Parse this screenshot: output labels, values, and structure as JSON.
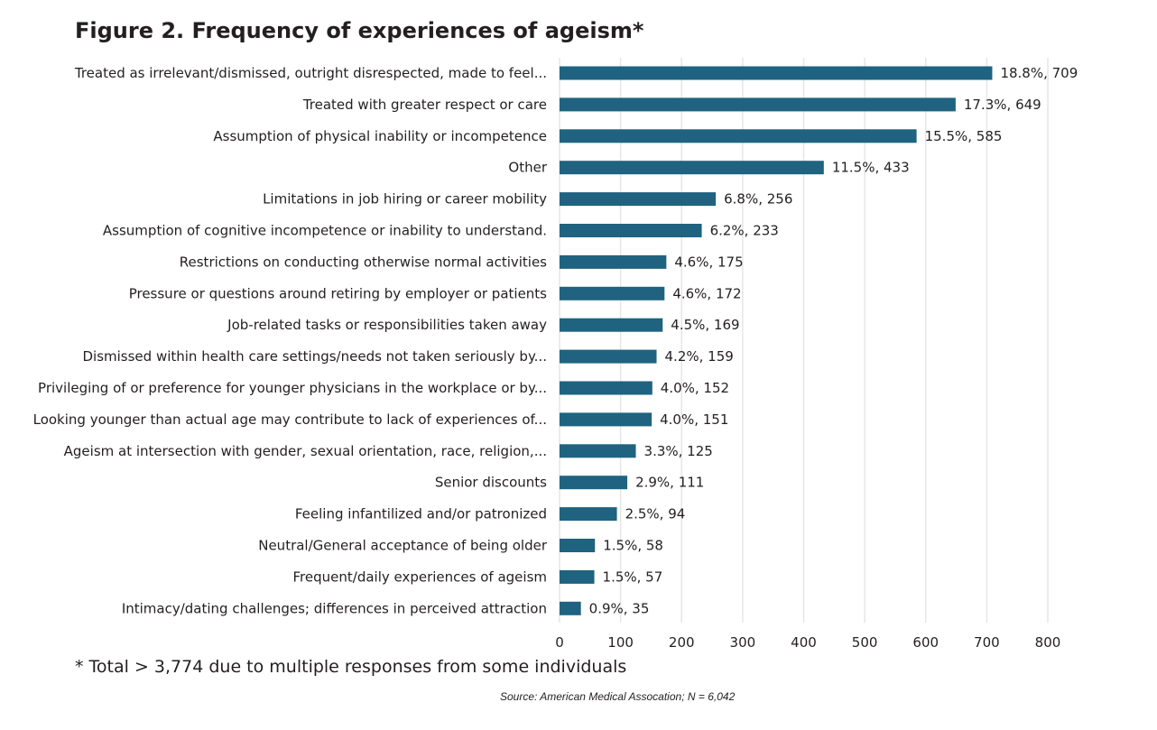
{
  "header": {
    "title": "Figure 2. Frequency of experiences of ageism*"
  },
  "footer": {
    "footnote": "* Total > 3,774 due to multiple responses from some individuals",
    "source": "Source: American Medical Assocation; N = 6,042"
  },
  "chart_data": {
    "type": "bar",
    "orientation": "horizontal",
    "bar_color": "#1f6380",
    "grid": true,
    "xlim": [
      0,
      800
    ],
    "xticks": [
      0,
      100,
      200,
      300,
      400,
      500,
      600,
      700,
      800
    ],
    "categories": [
      "Treated as irrelevant/dismissed, outright disrespected, made to feel...",
      "Treated with greater respect or care",
      "Assumption of physical inability or incompetence",
      "Other",
      "Limitations in job hiring or career mobility",
      "Assumption of cognitive incompetence or inability to understand.",
      "Restrictions on conducting otherwise normal activities",
      "Pressure or questions around retiring by employer or patients",
      "Job-related tasks or responsibilities taken away",
      "Dismissed within health care settings/needs not taken seriously by...",
      "Privileging of or preference for younger physicians in the workplace or by...",
      "Looking younger than actual age may contribute to lack of experiences of...",
      "Ageism at intersection with gender, sexual orientation, race, religion,...",
      "Senior discounts",
      "Feeling infantilized and/or patronized",
      "Neutral/General acceptance of being older",
      "Frequent/daily experiences of ageism",
      "Intimacy/dating challenges; differences in perceived attraction"
    ],
    "values": [
      709,
      649,
      585,
      433,
      256,
      233,
      175,
      172,
      169,
      159,
      152,
      151,
      125,
      111,
      94,
      58,
      57,
      35
    ],
    "data_labels": [
      "18.8%, 709",
      "17.3%, 649",
      "15.5%, 585",
      "11.5%, 433",
      "6.8%, 256",
      "6.2%, 233",
      "4.6%, 175",
      "4.6%, 172",
      "4.5%, 169",
      "4.2%, 159",
      "4.0%, 152",
      "4.0%, 151",
      "3.3%, 125",
      "2.9%, 111",
      "2.5%, 94",
      "1.5%, 58",
      "1.5%, 57",
      "0.9%, 35"
    ]
  }
}
